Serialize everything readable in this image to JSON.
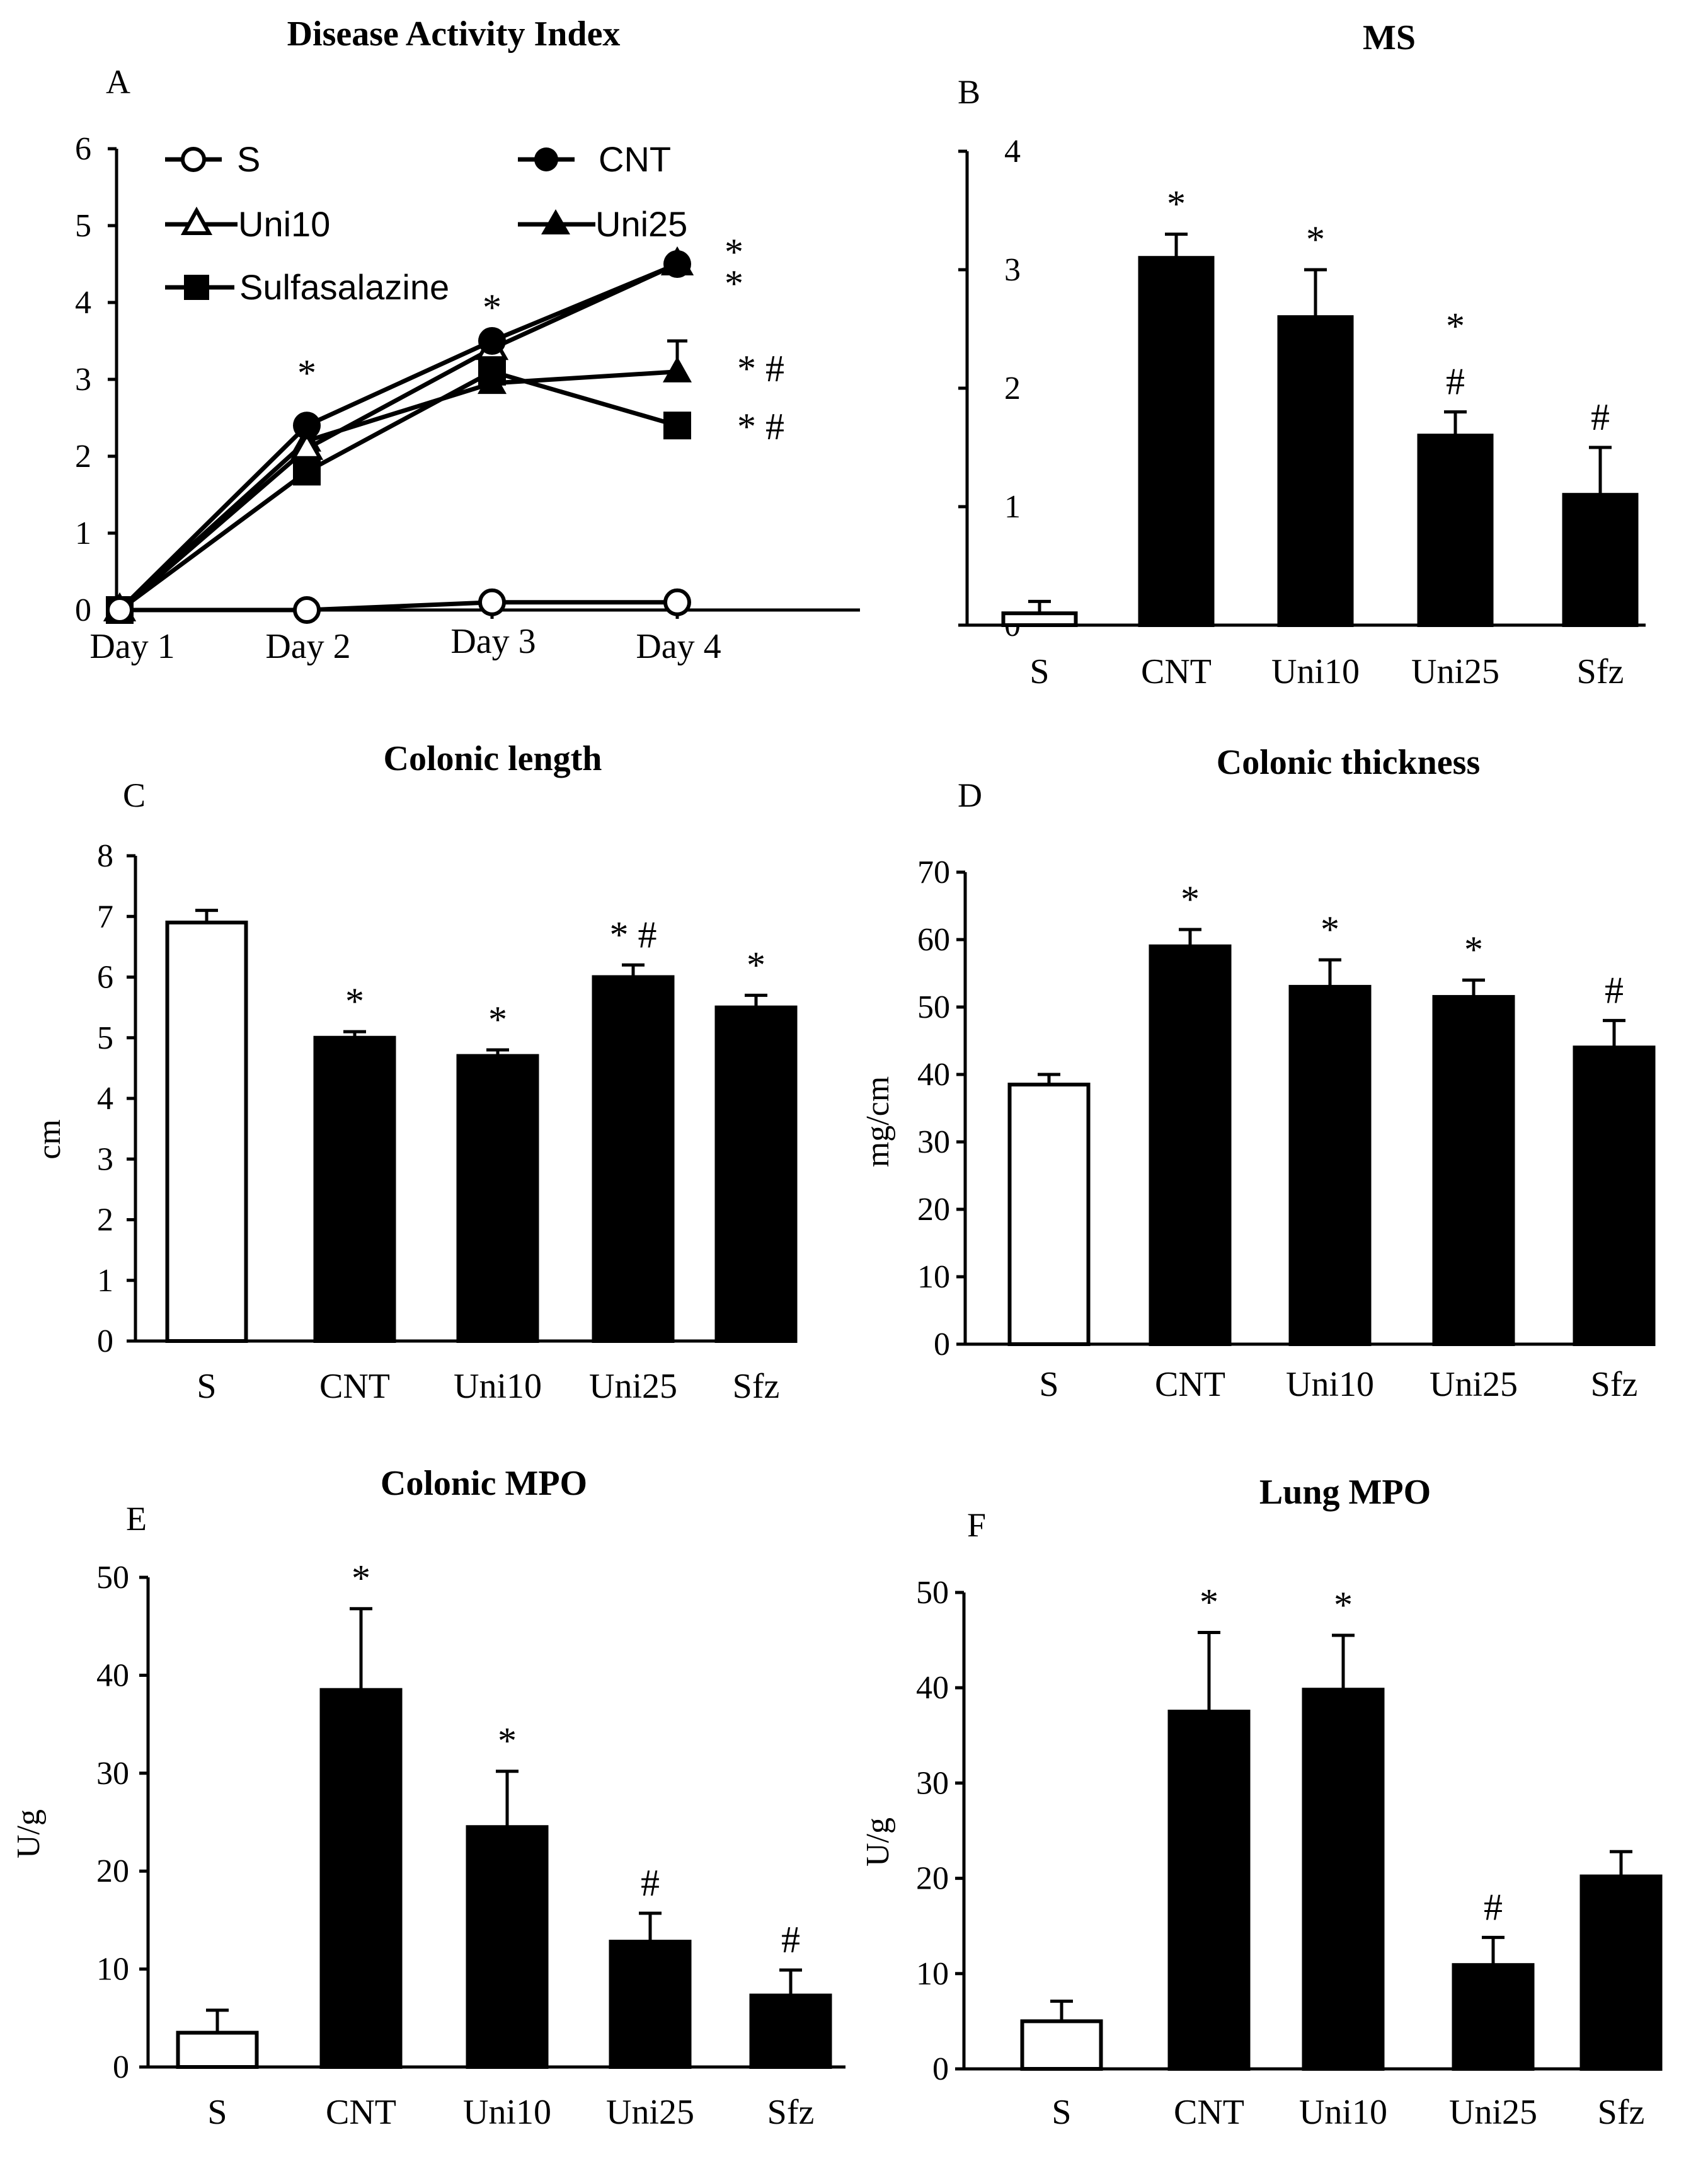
{
  "chart_data": [
    {
      "id": "A",
      "panel_label": "A",
      "type": "line",
      "title": "Disease Activity Index",
      "xlabel": "",
      "ylabel": "",
      "categories": [
        "Day 1",
        "Day 2",
        "Day 3",
        "Day 4"
      ],
      "ylim": [
        0,
        6
      ],
      "yticks": [
        "0",
        "1",
        "2",
        "3",
        "4",
        "5",
        "6"
      ],
      "series": [
        {
          "name": "S",
          "marker": "circle-open",
          "values": [
            0,
            0,
            0.1,
            0.1
          ]
        },
        {
          "name": "CNT",
          "marker": "circle-filled",
          "values": [
            0,
            2.4,
            3.5,
            4.5
          ]
        },
        {
          "name": "Uni10",
          "marker": "triangle-open",
          "values": [
            0,
            2.1,
            3.4,
            4.5
          ]
        },
        {
          "name": "Uni25",
          "marker": "triangle-filled",
          "values": [
            0,
            2.2,
            2.95,
            3.1
          ],
          "err": [
            0,
            0,
            0,
            0.4
          ]
        },
        {
          "name": "Sulfasalazine",
          "marker": "square-filled",
          "values": [
            0,
            1.8,
            3.1,
            2.4
          ]
        }
      ],
      "annotations": [
        {
          "category": "Day 2",
          "text": "*"
        },
        {
          "category": "Day 3",
          "text": "*"
        },
        {
          "category": "Day 4",
          "series": "CNT",
          "text": "*"
        },
        {
          "category": "Day 4",
          "series": "Uni10",
          "text": "*"
        },
        {
          "category": "Day 4",
          "series": "Uni25",
          "text": "* #"
        },
        {
          "category": "Day 4",
          "series": "Sulfasalazine",
          "text": "* #"
        }
      ]
    },
    {
      "id": "B",
      "panel_label": "B",
      "type": "bar",
      "title": "MS",
      "ylabel": "",
      "categories": [
        "S",
        "CNT",
        "Uni10",
        "Uni25",
        "Sfz"
      ],
      "values": [
        0.1,
        3.1,
        2.6,
        1.6,
        1.1
      ],
      "errors": [
        0.1,
        0.2,
        0.4,
        0.2,
        0.4
      ],
      "fills": [
        "#ffffff",
        "#000000",
        "#000000",
        "#000000",
        "#000000"
      ],
      "annotations": [
        "",
        "*",
        "*",
        "*\n#",
        "#"
      ],
      "ylim": [
        0,
        4
      ],
      "yticks": [
        "0",
        "1",
        "2",
        "3",
        "4"
      ]
    },
    {
      "id": "C",
      "panel_label": "C",
      "type": "bar",
      "title": "Colonic length",
      "ylabel": "cm",
      "categories": [
        "S",
        "CNT",
        "Uni10",
        "Uni25",
        "Sfz"
      ],
      "values": [
        6.9,
        5.0,
        4.7,
        6.0,
        5.5
      ],
      "errors": [
        0.2,
        0.1,
        0.1,
        0.2,
        0.2
      ],
      "fills": [
        "#ffffff",
        "#000000",
        "#000000",
        "#000000",
        "#000000"
      ],
      "annotations": [
        "",
        "*",
        "*",
        "* #",
        "*"
      ],
      "ylim": [
        0,
        8
      ],
      "yticks": [
        "0",
        "1",
        "2",
        "3",
        "4",
        "5",
        "6",
        "7",
        "8"
      ]
    },
    {
      "id": "D",
      "panel_label": "D",
      "type": "bar",
      "title": "Colonic thickness",
      "ylabel": "mg/cm",
      "categories": [
        "S",
        "CNT",
        "Uni10",
        "Uni25",
        "Sfz"
      ],
      "values": [
        38.5,
        59,
        53,
        51.5,
        44
      ],
      "errors": [
        1.5,
        2.5,
        4,
        2.5,
        4
      ],
      "fills": [
        "#ffffff",
        "#000000",
        "#000000",
        "#000000",
        "#000000"
      ],
      "annotations": [
        "",
        "*",
        "*",
        "*",
        "#"
      ],
      "ylim": [
        0,
        70
      ],
      "yticks": [
        "0",
        "10",
        "20",
        "30",
        "40",
        "50",
        "60",
        "70"
      ]
    },
    {
      "id": "E",
      "panel_label": "E",
      "type": "bar",
      "title": "Colonic MPO",
      "ylabel": "U/g",
      "categories": [
        "S",
        "CNT",
        "Uni10",
        "Uni25",
        "Sfz"
      ],
      "values": [
        3.5,
        38.5,
        24.5,
        12.8,
        7.3
      ],
      "errors": [
        2.3,
        8.3,
        5.7,
        2.9,
        2.6
      ],
      "fills": [
        "#ffffff",
        "#000000",
        "#000000",
        "#000000",
        "#000000"
      ],
      "annotations": [
        "",
        "*",
        "*",
        "#",
        "#"
      ],
      "ylim": [
        0,
        50
      ],
      "yticks": [
        "0",
        "10",
        "20",
        "30",
        "40",
        "50"
      ]
    },
    {
      "id": "F",
      "panel_label": "F",
      "type": "bar",
      "title": "Lung MPO",
      "ylabel": "U/g",
      "categories": [
        "S",
        "CNT",
        "Uni10",
        "Uni25",
        "Sfz"
      ],
      "values": [
        5,
        37.5,
        39.8,
        10.9,
        20.2
      ],
      "errors": [
        2.1,
        8.3,
        5.7,
        2.9,
        2.6
      ],
      "fills": [
        "#ffffff",
        "#000000",
        "#000000",
        "#000000",
        "#000000"
      ],
      "annotations": [
        "",
        "*",
        "*",
        "#",
        ""
      ],
      "ylim": [
        0,
        50
      ],
      "yticks": [
        "0",
        "10",
        "20",
        "30",
        "40",
        "50"
      ]
    }
  ]
}
